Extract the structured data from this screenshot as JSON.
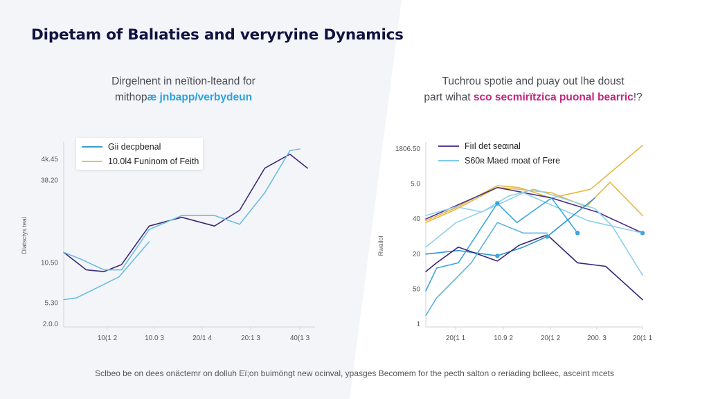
{
  "page": {
    "title": "Dipetam of Balıaties and veryryine Dynamics",
    "footer": "Sclbeo be on dees onäctemr on dolluh Eï;on buimöngt new ocinval, ypasges Becomem for the pecth salton o reriading bclleec, asceint mcets",
    "colors": {
      "title": "#10123f",
      "panel_bg": "#f4f5f9",
      "highlight_blue": "#2aa3e0",
      "highlight_pink": "#c2257e"
    }
  },
  "left_panel": {
    "subtitle_line1": "Dirgelnent in neïtion-lteand for",
    "subtitle_line2_plain": "mithop",
    "subtitle_line2_highlight": "æ jnbapp/verbydeun"
  },
  "right_panel": {
    "subtitle_line1": "Tuchrou spotie and puay out lhe doust",
    "subtitle_line2_plain": "part wihat ",
    "subtitle_line2_highlight": "sco secmirïtzica puonal bearric",
    "subtitle_line2_tail": "!?"
  },
  "chart_data": [
    {
      "type": "line",
      "title": "",
      "xlabel": "",
      "ylabel": "Dlatsctys teal",
      "x_tick_labels": [
        "10(1 2",
        "10.0 3",
        "20/1 4",
        "20:1 3",
        "40(1 3"
      ],
      "y_tick_labels": [
        "4k.45",
        "38.20",
        "10.50",
        "5.30",
        "2.0.0"
      ],
      "y_tick_positions": [
        94,
        82,
        35,
        12,
        0
      ],
      "ylim": [
        0,
        100
      ],
      "xlim": [
        0,
        10
      ],
      "grid": false,
      "legend_position": "top-left",
      "legend": [
        {
          "label": "Gii decpbenal",
          "color": "#3a9cc9"
        },
        {
          "label": "10.0l4 Funinom of Feith",
          "color": "#e8c25a"
        }
      ],
      "series": [
        {
          "name": "dark",
          "color": "#3b2a78",
          "x": [
            0,
            0.9,
            1.6,
            2.3,
            3.4,
            4.7,
            6.0,
            7.0,
            8.0,
            9.0,
            9.7
          ],
          "y": [
            41,
            31,
            30,
            34,
            56,
            61,
            56,
            65,
            89,
            97,
            89
          ]
        },
        {
          "name": "light",
          "color": "#6bbde0",
          "x": [
            0,
            0.7,
            1.6,
            2.3,
            3.4,
            4.7,
            6.0,
            7.0,
            8.0,
            9.0,
            9.4
          ],
          "y": [
            41,
            37,
            31,
            31,
            54,
            62,
            62,
            57,
            75,
            99,
            100
          ]
        },
        {
          "name": "light-low",
          "color": "#6bbde0",
          "x": [
            0,
            0.5,
            1.5,
            2.2,
            2.8,
            3.4
          ],
          "y": [
            14,
            15,
            22,
            27,
            37,
            47
          ]
        }
      ]
    },
    {
      "type": "line",
      "title": "",
      "xlabel": "",
      "ylabel": "Rwailol",
      "x_tick_labels": [
        "20(1 1",
        "10.9 2",
        "20(1 2",
        "200. 3",
        "20(1 1"
      ],
      "y_tick_labels": [
        "1806.50",
        "5.0",
        "40",
        "20",
        "50",
        "1"
      ],
      "y_tick_positions": [
        100,
        80,
        60,
        40,
        20,
        0
      ],
      "ylim": [
        0,
        100
      ],
      "xlim": [
        0,
        10
      ],
      "grid": false,
      "legend_position": "top-left",
      "legend": [
        {
          "label": "Fiıl det seαιnal",
          "color": "#5b3d92"
        },
        {
          "label": "S60ʀ Maed moat of Fere",
          "color": "#7dc8e8"
        }
      ],
      "series": [
        {
          "name": "gold-a",
          "color": "#e6b742",
          "x": [
            0,
            1.3,
            3.3,
            4.3,
            5.8,
            7.6,
            10
          ],
          "y": [
            59,
            66,
            79,
            78,
            72,
            77,
            102
          ]
        },
        {
          "name": "gold-b",
          "color": "#e6b742",
          "x": [
            0,
            1.3,
            3.3,
            4.3,
            5.8,
            7.4,
            8.5,
            10
          ],
          "y": [
            58,
            65,
            78,
            77,
            75,
            67,
            81,
            62
          ]
        },
        {
          "name": "purple-top",
          "color": "#4a2f8a",
          "x": [
            0,
            3.3,
            5.8,
            7.9,
            10
          ],
          "y": [
            60,
            78,
            72,
            64,
            52
          ]
        },
        {
          "name": "light-1",
          "color": "#8fd0ec",
          "x": [
            0,
            1.4,
            2.6,
            3.8,
            5.0,
            7.8,
            8.6,
            10
          ],
          "y": [
            62,
            67,
            64,
            73,
            77,
            66,
            56,
            28
          ]
        },
        {
          "name": "light-2",
          "color": "#8fd0ec",
          "x": [
            0,
            1.4,
            3.3,
            4.5,
            5.8,
            7.5,
            10
          ],
          "y": [
            44,
            58,
            68,
            75,
            68,
            59,
            52
          ]
        },
        {
          "name": "blue-1",
          "color": "#2c95d1",
          "x": [
            0,
            1.5,
            3.3,
            4.5,
            5.6,
            7.8
          ],
          "y": [
            40,
            42,
            39,
            44,
            50,
            72
          ]
        },
        {
          "name": "blue-2",
          "color": "#3aa6df",
          "x": [
            0,
            0.5,
            1.5,
            3.3,
            4.2,
            5.8,
            7.0
          ],
          "y": [
            19,
            32,
            35,
            69,
            58,
            72,
            52
          ]
        },
        {
          "name": "purple-low",
          "color": "#3b2578",
          "x": [
            0,
            0.5,
            1.5,
            3.3,
            4.3,
            5.6,
            7.0,
            8.3,
            10
          ],
          "y": [
            30,
            35,
            44,
            36,
            45,
            51,
            35,
            33,
            14
          ]
        },
        {
          "name": "sky-low",
          "color": "#5bb4e2",
          "x": [
            0,
            0.5,
            2.1,
            3.3,
            4.5,
            5.6
          ],
          "y": [
            5,
            15,
            35,
            58,
            52,
            52
          ]
        }
      ],
      "markers": [
        {
          "x": 3.3,
          "y": 69,
          "color": "#3aa6df"
        },
        {
          "x": 3.3,
          "y": 39,
          "color": "#3aa6df"
        },
        {
          "x": 5.6,
          "y": 50,
          "color": "#3aa6df"
        },
        {
          "x": 7.0,
          "y": 52,
          "color": "#3aa6df"
        },
        {
          "x": 10,
          "y": 52,
          "color": "#3aa6df"
        }
      ]
    }
  ]
}
